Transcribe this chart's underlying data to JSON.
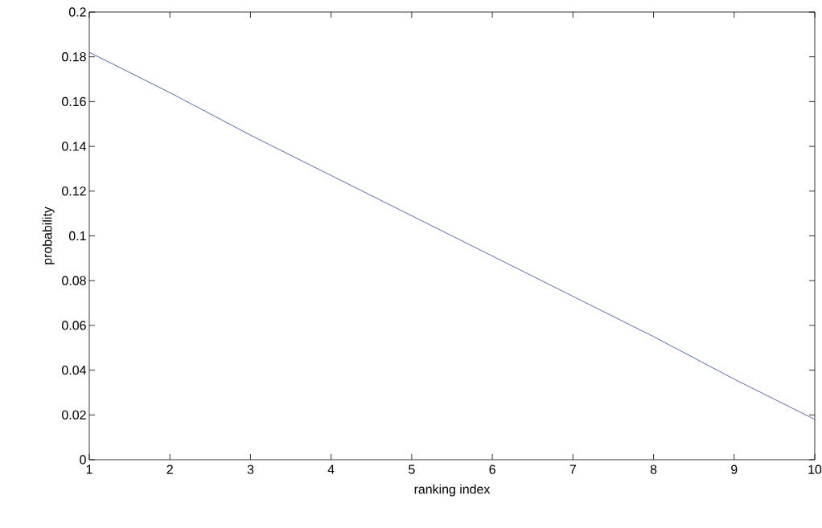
{
  "chart_data": {
    "type": "line",
    "xlabel": "ranking index",
    "ylabel": "probability",
    "x": [
      1,
      2,
      3,
      4,
      5,
      6,
      7,
      8,
      9,
      10
    ],
    "series": [
      {
        "color": "#2840a0",
        "values": [
          0.182,
          0.164,
          0.145,
          0.127,
          0.109,
          0.091,
          0.073,
          0.055,
          0.036,
          0.018
        ]
      }
    ],
    "xlim": [
      1,
      10
    ],
    "xticks": [
      1,
      2,
      3,
      4,
      5,
      6,
      7,
      8,
      9,
      10
    ],
    "ylim": [
      0,
      0.2
    ],
    "yticks": [
      0,
      0.02,
      0.04,
      0.06,
      0.08,
      0.1,
      0.12,
      0.14,
      0.16,
      0.18,
      0.2
    ],
    "grid": false,
    "marker": "none",
    "line_style": "solid"
  }
}
